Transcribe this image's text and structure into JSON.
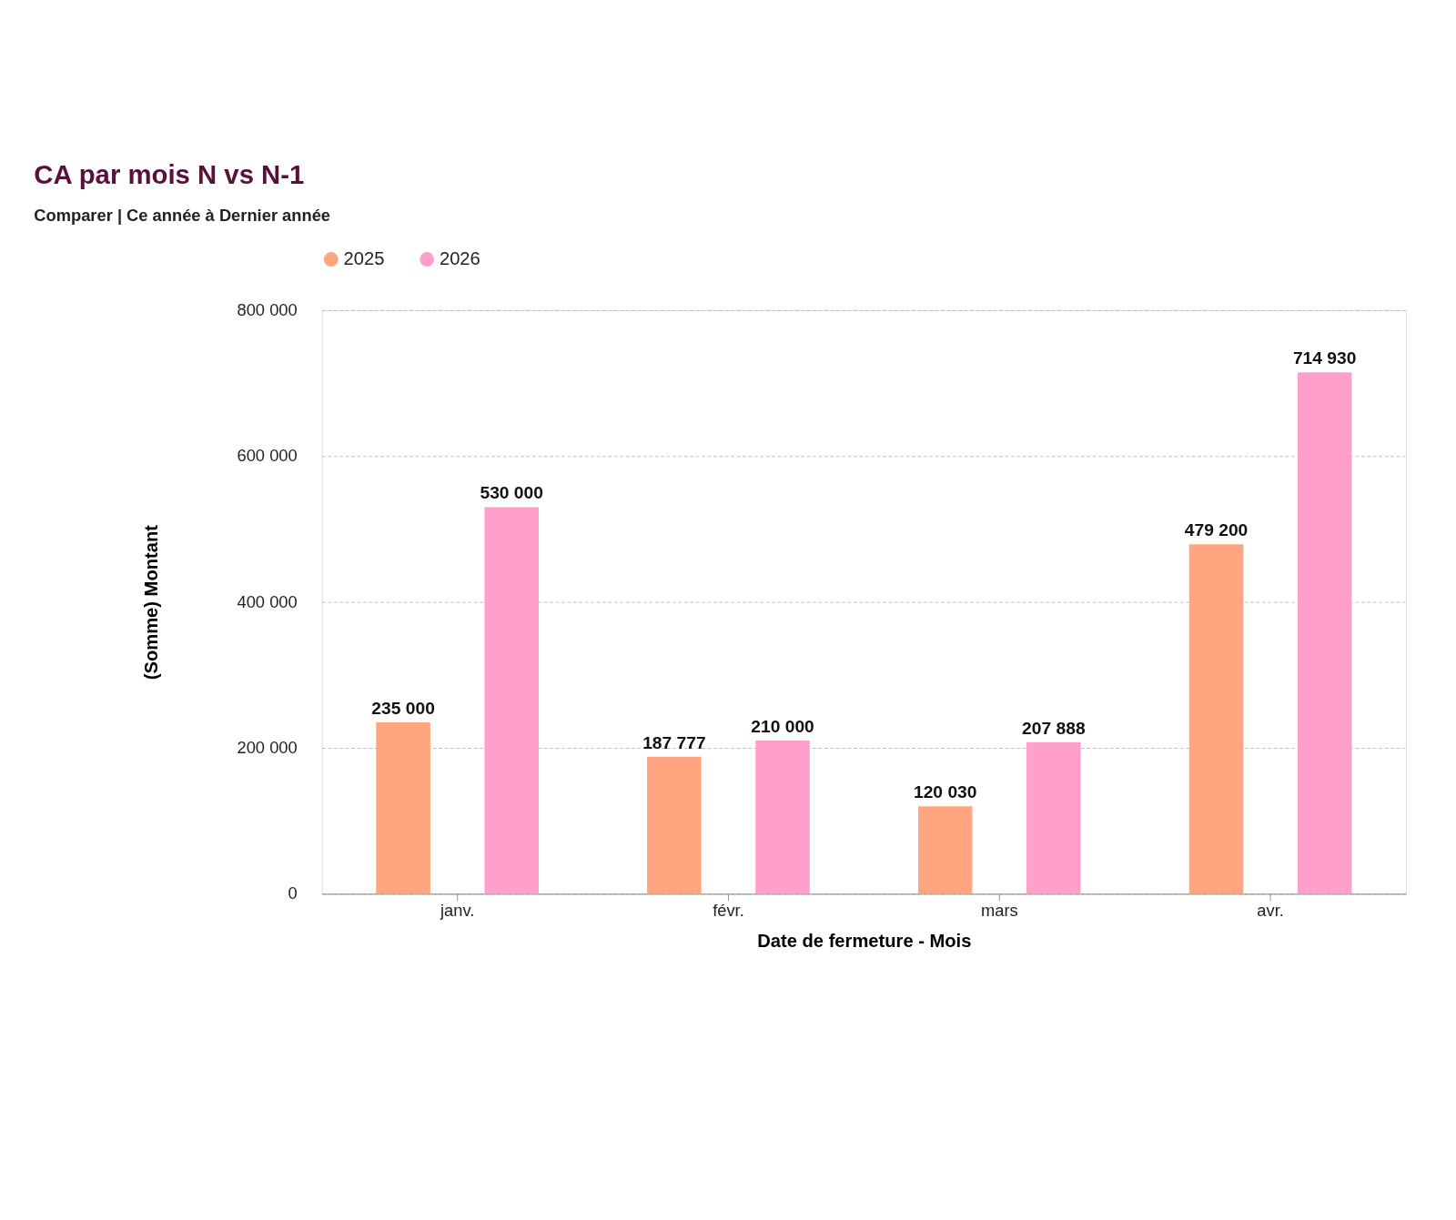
{
  "chart_data": {
    "type": "bar",
    "title": "CA par mois N vs N-1",
    "subtitle": "Comparer | Ce année à Dernier année",
    "xlabel": "Date de fermeture - Mois",
    "ylabel": "(Somme) Montant",
    "categories": [
      "janv.",
      "févr.",
      "mars",
      "avr."
    ],
    "series": [
      {
        "name": "2025",
        "color": "#ffa680",
        "values": [
          235000,
          187777,
          120030,
          479200
        ],
        "value_labels": [
          "235 000",
          "187 777",
          "120 030",
          "479 200"
        ]
      },
      {
        "name": "2026",
        "color": "#ffa0cc",
        "values": [
          530000,
          210000,
          207888,
          714930
        ],
        "value_labels": [
          "530 000",
          "210 000",
          "207 888",
          "714 930"
        ]
      }
    ],
    "ylim": [
      0,
      800000
    ],
    "yticks": [
      {
        "value": 0,
        "label": "0"
      },
      {
        "value": 200000,
        "label": "200 000"
      },
      {
        "value": 400000,
        "label": "400 000"
      },
      {
        "value": 600000,
        "label": "600 000"
      },
      {
        "value": 800000,
        "label": "800 000"
      }
    ],
    "grid": "y",
    "legend": "top left"
  }
}
